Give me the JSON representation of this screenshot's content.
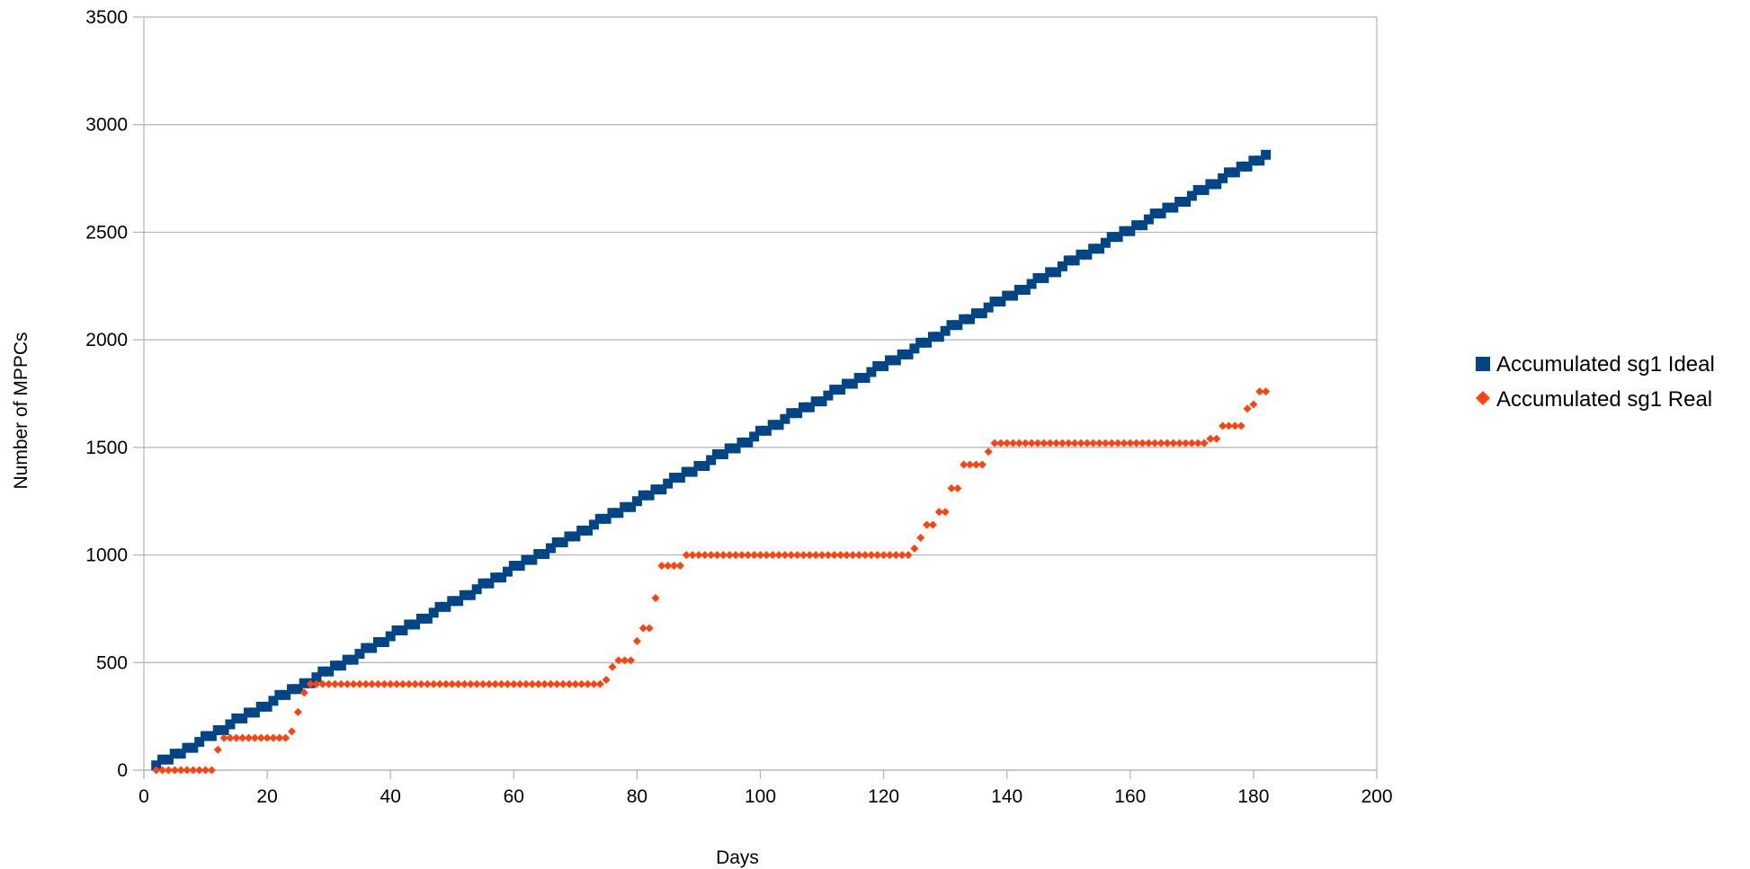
{
  "chart_data": {
    "type": "scatter",
    "xlabel": "Days",
    "ylabel": "Number of MPPCs",
    "xlim": [
      0,
      200
    ],
    "ylim": [
      0,
      3500
    ],
    "xticks": [
      "0",
      "20",
      "40",
      "60",
      "80",
      "100",
      "120",
      "140",
      "160",
      "180",
      "200"
    ],
    "yticks": [
      "0",
      "500",
      "1000",
      "1500",
      "2000",
      "2500",
      "3000",
      "3500"
    ],
    "grid": "horizontal",
    "legend_position": "right",
    "series": [
      {
        "name": "Accumulated sg1 Ideal",
        "marker": "square",
        "color": "#004586",
        "x_start": 2,
        "x_end": 182,
        "y_start": 22,
        "y_end": 2860
      },
      {
        "name": "Accumulated sg1 Real",
        "marker": "diamond",
        "color": "#ff420e",
        "points": [
          [
            2,
            0
          ],
          [
            3,
            0
          ],
          [
            4,
            0
          ],
          [
            5,
            0
          ],
          [
            6,
            0
          ],
          [
            7,
            0
          ],
          [
            8,
            0
          ],
          [
            9,
            0
          ],
          [
            10,
            0
          ],
          [
            11,
            0
          ],
          [
            12,
            95
          ],
          [
            13,
            150
          ],
          [
            14,
            150
          ],
          [
            15,
            150
          ],
          [
            16,
            150
          ],
          [
            17,
            150
          ],
          [
            18,
            150
          ],
          [
            19,
            150
          ],
          [
            20,
            150
          ],
          [
            21,
            150
          ],
          [
            22,
            150
          ],
          [
            23,
            150
          ],
          [
            24,
            180
          ],
          [
            25,
            270
          ],
          [
            26,
            360
          ],
          [
            27,
            400
          ],
          [
            28,
            400
          ],
          [
            29,
            400
          ],
          [
            30,
            400
          ],
          [
            31,
            400
          ],
          [
            32,
            400
          ],
          [
            33,
            400
          ],
          [
            34,
            400
          ],
          [
            35,
            400
          ],
          [
            36,
            400
          ],
          [
            37,
            400
          ],
          [
            38,
            400
          ],
          [
            39,
            400
          ],
          [
            40,
            400
          ],
          [
            41,
            400
          ],
          [
            42,
            400
          ],
          [
            43,
            400
          ],
          [
            44,
            400
          ],
          [
            45,
            400
          ],
          [
            46,
            400
          ],
          [
            47,
            400
          ],
          [
            48,
            400
          ],
          [
            49,
            400
          ],
          [
            50,
            400
          ],
          [
            51,
            400
          ],
          [
            52,
            400
          ],
          [
            53,
            400
          ],
          [
            54,
            400
          ],
          [
            55,
            400
          ],
          [
            56,
            400
          ],
          [
            57,
            400
          ],
          [
            58,
            400
          ],
          [
            59,
            400
          ],
          [
            60,
            400
          ],
          [
            61,
            400
          ],
          [
            62,
            400
          ],
          [
            63,
            400
          ],
          [
            64,
            400
          ],
          [
            65,
            400
          ],
          [
            66,
            400
          ],
          [
            67,
            400
          ],
          [
            68,
            400
          ],
          [
            69,
            400
          ],
          [
            70,
            400
          ],
          [
            71,
            400
          ],
          [
            72,
            400
          ],
          [
            73,
            400
          ],
          [
            74,
            400
          ],
          [
            75,
            420
          ],
          [
            76,
            480
          ],
          [
            77,
            510
          ],
          [
            78,
            510
          ],
          [
            79,
            510
          ],
          [
            80,
            600
          ],
          [
            81,
            660
          ],
          [
            82,
            660
          ],
          [
            83,
            800
          ],
          [
            84,
            950
          ],
          [
            85,
            950
          ],
          [
            86,
            950
          ],
          [
            87,
            950
          ],
          [
            88,
            1000
          ],
          [
            89,
            1000
          ],
          [
            90,
            1000
          ],
          [
            91,
            1000
          ],
          [
            92,
            1000
          ],
          [
            93,
            1000
          ],
          [
            94,
            1000
          ],
          [
            95,
            1000
          ],
          [
            96,
            1000
          ],
          [
            97,
            1000
          ],
          [
            98,
            1000
          ],
          [
            99,
            1000
          ],
          [
            100,
            1000
          ],
          [
            101,
            1000
          ],
          [
            102,
            1000
          ],
          [
            103,
            1000
          ],
          [
            104,
            1000
          ],
          [
            105,
            1000
          ],
          [
            106,
            1000
          ],
          [
            107,
            1000
          ],
          [
            108,
            1000
          ],
          [
            109,
            1000
          ],
          [
            110,
            1000
          ],
          [
            111,
            1000
          ],
          [
            112,
            1000
          ],
          [
            113,
            1000
          ],
          [
            114,
            1000
          ],
          [
            115,
            1000
          ],
          [
            116,
            1000
          ],
          [
            117,
            1000
          ],
          [
            118,
            1000
          ],
          [
            119,
            1000
          ],
          [
            120,
            1000
          ],
          [
            121,
            1000
          ],
          [
            122,
            1000
          ],
          [
            123,
            1000
          ],
          [
            124,
            1000
          ],
          [
            125,
            1030
          ],
          [
            126,
            1080
          ],
          [
            127,
            1140
          ],
          [
            128,
            1140
          ],
          [
            129,
            1200
          ],
          [
            130,
            1200
          ],
          [
            131,
            1310
          ],
          [
            132,
            1310
          ],
          [
            133,
            1420
          ],
          [
            134,
            1420
          ],
          [
            135,
            1420
          ],
          [
            136,
            1420
          ],
          [
            137,
            1480
          ],
          [
            138,
            1520
          ],
          [
            139,
            1520
          ],
          [
            140,
            1520
          ],
          [
            141,
            1520
          ],
          [
            142,
            1520
          ],
          [
            143,
            1520
          ],
          [
            144,
            1520
          ],
          [
            145,
            1520
          ],
          [
            146,
            1520
          ],
          [
            147,
            1520
          ],
          [
            148,
            1520
          ],
          [
            149,
            1520
          ],
          [
            150,
            1520
          ],
          [
            151,
            1520
          ],
          [
            152,
            1520
          ],
          [
            153,
            1520
          ],
          [
            154,
            1520
          ],
          [
            155,
            1520
          ],
          [
            156,
            1520
          ],
          [
            157,
            1520
          ],
          [
            158,
            1520
          ],
          [
            159,
            1520
          ],
          [
            160,
            1520
          ],
          [
            161,
            1520
          ],
          [
            162,
            1520
          ],
          [
            163,
            1520
          ],
          [
            164,
            1520
          ],
          [
            165,
            1520
          ],
          [
            166,
            1520
          ],
          [
            167,
            1520
          ],
          [
            168,
            1520
          ],
          [
            169,
            1520
          ],
          [
            170,
            1520
          ],
          [
            171,
            1520
          ],
          [
            172,
            1520
          ],
          [
            173,
            1540
          ],
          [
            174,
            1540
          ],
          [
            175,
            1600
          ],
          [
            176,
            1600
          ],
          [
            177,
            1600
          ],
          [
            178,
            1600
          ],
          [
            179,
            1680
          ],
          [
            180,
            1700
          ],
          [
            181,
            1760
          ],
          [
            182,
            1760
          ]
        ]
      }
    ]
  }
}
